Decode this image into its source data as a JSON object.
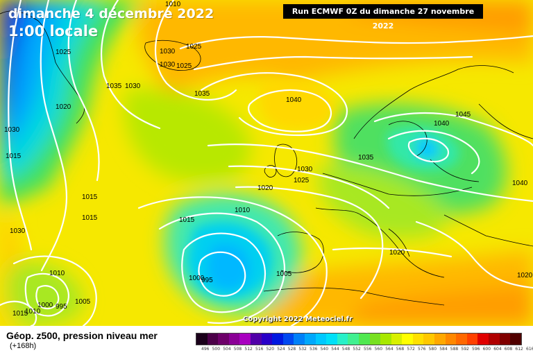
{
  "header": {
    "date": "dimanche 4 décembre 2022",
    "hour": "1:00 locale",
    "run": "Run ECMWF 0Z du dimanche 27 novembre 2022"
  },
  "footer": {
    "title": "Géop. z500, pression niveau mer",
    "subtitle": "(+168h)",
    "copyright": "Copyright 2022 Meteociel.fr"
  },
  "scale": {
    "colors": [
      "#1a001a",
      "#4b0048",
      "#6d0069",
      "#8a0096",
      "#a800c0",
      "#5000a8",
      "#2800c8",
      "#0018e0",
      "#0048f0",
      "#0080f8",
      "#00a8fc",
      "#00c8ff",
      "#00e0f8",
      "#28f0c8",
      "#40f090",
      "#50e850",
      "#78e020",
      "#a8e800",
      "#d8f000",
      "#ffff00",
      "#ffe000",
      "#ffc800",
      "#ffa800",
      "#ff8800",
      "#ff6800",
      "#ff4000",
      "#e00000",
      "#b00000",
      "#800000",
      "#500000"
    ],
    "ticks": [
      "496",
      "500",
      "504",
      "508",
      "512",
      "516",
      "520",
      "524",
      "528",
      "532",
      "536",
      "540",
      "544",
      "548",
      "552",
      "556",
      "560",
      "564",
      "568",
      "572",
      "576",
      "580",
      "584",
      "588",
      "592",
      "596",
      "600",
      "604",
      "608",
      "612",
      "616"
    ]
  },
  "isobars": [
    "1010",
    "1025",
    "1030",
    "1030",
    "1025",
    "1025",
    "1020",
    "1030",
    "1035",
    "1030",
    "1035",
    "1040",
    "1045",
    "1040",
    "1035",
    "1030",
    "1025",
    "1020",
    "1040",
    "1015",
    "1015",
    "1030",
    "1010",
    "1015",
    "1020",
    "1005",
    "1000",
    "995",
    "1000",
    "995",
    "1005",
    "1010",
    "1010",
    "1015",
    "1020",
    "1015"
  ]
}
